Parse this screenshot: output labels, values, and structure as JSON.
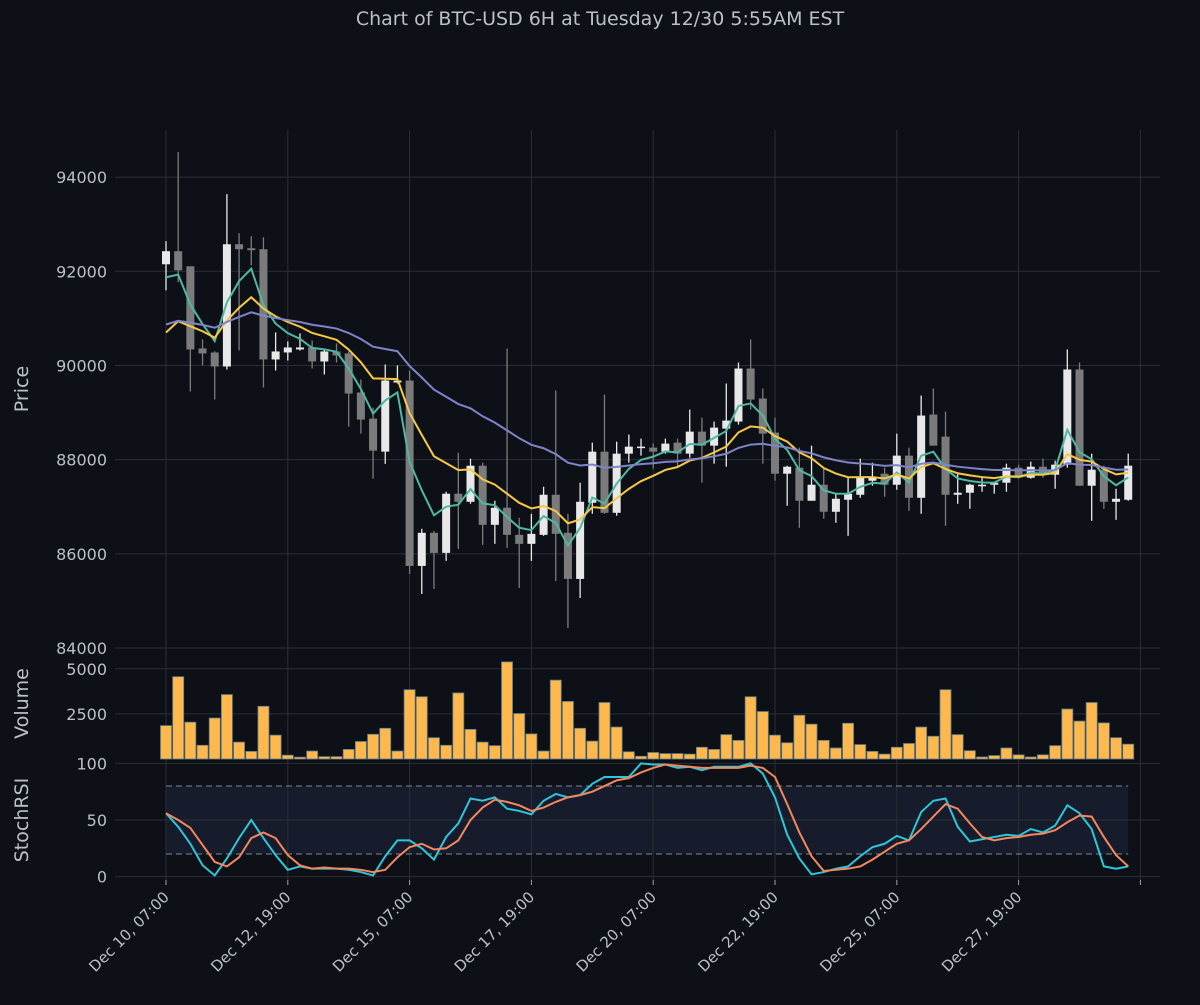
{
  "title": "Chart of BTC-USD 6H at Tuesday 12/30 5:55AM EST",
  "colors": {
    "background": "#0d1117",
    "grid": "#2a2e35",
    "up": "#e8e8e8",
    "down": "#7b7b7b",
    "volume": "#ffb84d",
    "volume_edge": "#5f7f8c",
    "ma_fast": "#4fb8a2",
    "ma_mid": "#f6c945",
    "ma_slow": "#7f83c9",
    "stoch_k": "#2ec6d8",
    "stoch_d": "#f4875f",
    "band": "#161c2b"
  },
  "chart_data": {
    "type": "candlestick",
    "title": "Chart of BTC-USD 6H at Tuesday 12/30 5:55AM EST",
    "x_tick_labels": [
      "Dec 10, 07:00",
      "Dec 12, 19:00",
      "Dec 15, 07:00",
      "Dec 17, 19:00",
      "Dec 20, 07:00",
      "Dec 22, 19:00",
      "Dec 25, 07:00",
      "Dec 27, 19:00",
      ""
    ],
    "x_tick_index": [
      0,
      10,
      20,
      30,
      40,
      50,
      60,
      70,
      80
    ],
    "price": {
      "ylabel": "Price",
      "ylim": [
        84000,
        95000
      ],
      "yticks": [
        84000,
        86000,
        88000,
        90000,
        92000,
        94000
      ],
      "open": [
        92149,
        92426,
        92106,
        90361,
        90276,
        89978,
        92574,
        92489,
        92468,
        90127,
        90276,
        90340,
        90382,
        90085,
        90297,
        90255,
        89425,
        88871,
        88170,
        89638,
        89680,
        85743,
        86446,
        86020,
        87276,
        87105,
        87871,
        86616,
        86978,
        86403,
        86212,
        86403,
        87254,
        86446,
        85467,
        87084,
        88169,
        86871,
        88127,
        88255,
        88255,
        88170,
        88361,
        88127,
        88595,
        88297,
        88659,
        88808,
        89935,
        89297,
        88574,
        87701,
        87829,
        87127,
        87467,
        86893,
        87148,
        87254,
        87552,
        87701,
        87467,
        88085,
        87190,
        88957,
        88489,
        87254,
        87297,
        87446,
        87467,
        87510,
        87829,
        87616,
        87850,
        87680,
        87893,
        89914,
        87446,
        87786,
        87105,
        87148
      ],
      "high": [
        92638,
        94532,
        92106,
        90553,
        90300,
        93638,
        92808,
        92745,
        92723,
        90702,
        90510,
        90680,
        90532,
        90340,
        90468,
        90297,
        89702,
        89106,
        90020,
        90000,
        89893,
        86531,
        86488,
        87318,
        88148,
        88020,
        87935,
        87127,
        90361,
        86765,
        86850,
        87424,
        89468,
        86850,
        87510,
        88361,
        89382,
        88382,
        88532,
        88446,
        88340,
        88446,
        88446,
        89063,
        88893,
        88808,
        89617,
        90063,
        90553,
        89510,
        88893,
        87871,
        88255,
        88297,
        87808,
        87297,
        87616,
        88020,
        87935,
        87829,
        88552,
        88255,
        89361,
        89510,
        89020,
        87723,
        87489,
        87638,
        87531,
        87914,
        87893,
        87957,
        88020,
        87978,
        90340,
        90063,
        88127,
        87871,
        87382,
        88127
      ],
      "low": [
        91596,
        91766,
        89446,
        90000,
        89276,
        89914,
        90318,
        92128,
        89531,
        89893,
        90106,
        90318,
        89935,
        89808,
        90063,
        88701,
        88552,
        87595,
        87910,
        89617,
        85573,
        85147,
        85254,
        85850,
        86105,
        87063,
        86190,
        86212,
        86127,
        85275,
        85850,
        86382,
        85424,
        84424,
        85062,
        86850,
        86850,
        86808,
        87935,
        88085,
        87808,
        88127,
        87829,
        88042,
        87510,
        87914,
        87850,
        88744,
        89063,
        87914,
        87552,
        87020,
        86552,
        87127,
        86744,
        86659,
        86382,
        87190,
        87446,
        87212,
        87361,
        86914,
        86850,
        88297,
        86595,
        87063,
        86957,
        87318,
        87276,
        87318,
        87595,
        87595,
        87616,
        87382,
        87829,
        87446,
        86701,
        86957,
        86722,
        87127
      ],
      "close": [
        92426,
        92021,
        90340,
        90255,
        89978,
        92574,
        92468,
        92447,
        90127,
        90297,
        90382,
        90382,
        90085,
        90297,
        90212,
        89404,
        88850,
        88190,
        89680,
        89680,
        85743,
        86446,
        86020,
        87276,
        87105,
        87871,
        86616,
        86978,
        86403,
        86212,
        86424,
        87254,
        86424,
        85467,
        87105,
        88169,
        86871,
        88127,
        88276,
        88276,
        88170,
        88340,
        88127,
        88595,
        88297,
        88680,
        88829,
        89935,
        89276,
        88553,
        87701,
        87850,
        87127,
        87467,
        86893,
        87169,
        87276,
        87638,
        87638,
        87467,
        88085,
        87190,
        88936,
        88297,
        87254,
        87297,
        87467,
        87467,
        87510,
        87829,
        87616,
        87850,
        87680,
        87893,
        89914,
        87446,
        87786,
        87105,
        87169,
        87871
      ],
      "moving_averages": [
        {
          "color_key": "ma_fast",
          "period": 4,
          "start": 91870
        },
        {
          "color_key": "ma_mid",
          "period": 10,
          "start": 90700
        },
        {
          "color_key": "ma_slow",
          "period": 28,
          "start": 90870
        }
      ]
    },
    "volume": {
      "ylabel": "Volume",
      "ylim": [
        0,
        6150
      ],
      "yticks": [
        2500,
        5000
      ],
      "values": [
        1850,
        4560,
        2040,
        760,
        2270,
        3570,
        935,
        420,
        2920,
        1320,
        210,
        100,
        440,
        130,
        130,
        530,
        970,
        1370,
        1700,
        440,
        3840,
        3450,
        1180,
        760,
        3660,
        1640,
        935,
        740,
        5380,
        2520,
        1390,
        440,
        4370,
        3190,
        1700,
        990,
        3130,
        1770,
        400,
        150,
        360,
        300,
        300,
        270,
        650,
        530,
        1350,
        1030,
        3450,
        2630,
        1320,
        900,
        2420,
        1930,
        1030,
        610,
        1980,
        800,
        420,
        270,
        650,
        860,
        1770,
        1260,
        3840,
        1350,
        460,
        110,
        190,
        610,
        230,
        110,
        230,
        740,
        2770,
        2100,
        3130,
        2000,
        1180,
        820
      ]
    },
    "stochrsi": {
      "ylabel": "StochRSI",
      "ylim": [
        -3,
        103
      ],
      "yticks": [
        0,
        50,
        100
      ],
      "bands": [
        20,
        80
      ],
      "k": [
        56,
        44,
        29,
        10,
        1,
        16,
        34,
        50,
        34,
        19,
        6,
        9,
        7,
        7,
        7,
        6,
        4,
        1,
        18,
        32,
        32,
        25,
        15,
        35,
        47,
        69,
        67,
        70,
        60,
        58,
        55,
        67,
        73,
        70,
        72,
        82,
        88,
        88,
        88,
        100,
        99,
        99,
        96,
        97,
        94,
        97,
        97,
        97,
        100,
        91,
        70,
        37,
        16,
        2,
        4,
        7,
        9,
        18,
        26,
        29,
        36,
        32,
        57,
        67,
        69,
        44,
        31,
        33,
        35,
        37,
        36,
        42,
        39,
        45,
        63,
        56,
        42,
        9,
        7,
        9
      ],
      "d": [
        56,
        50,
        43,
        28,
        13,
        9,
        17,
        34,
        39,
        34,
        19,
        10,
        7,
        8,
        7,
        7,
        6,
        4,
        6,
        17,
        26,
        29,
        24,
        25,
        32,
        50,
        61,
        68,
        66,
        63,
        58,
        61,
        66,
        70,
        72,
        75,
        80,
        85,
        87,
        92,
        96,
        99,
        98,
        97,
        96,
        96,
        96,
        96,
        98,
        96,
        88,
        64,
        39,
        18,
        5,
        6,
        7,
        9,
        15,
        22,
        29,
        32,
        42,
        53,
        64,
        60,
        47,
        35,
        32,
        34,
        35,
        37,
        38,
        41,
        48,
        54,
        53,
        35,
        19,
        9
      ]
    }
  }
}
